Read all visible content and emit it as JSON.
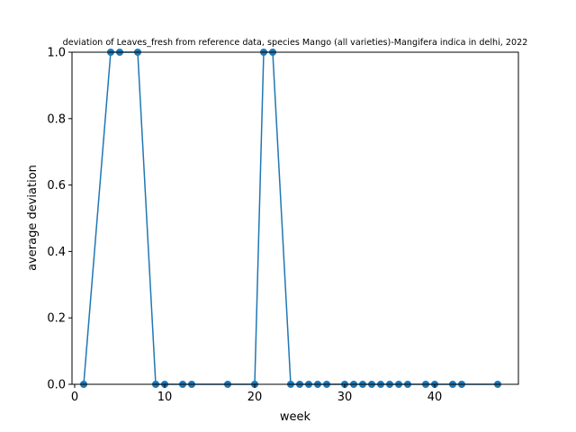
{
  "chart_data": {
    "type": "line",
    "title": "deviation of Leaves_fresh from reference data, species Mango (all varieties)-Mangifera indica in delhi, 2022",
    "xlabel": "week",
    "ylabel": "average deviation",
    "xlim": [
      -0.3,
      49.3
    ],
    "ylim": [
      0.0,
      1.0
    ],
    "xticks": [
      0,
      10,
      20,
      30,
      40
    ],
    "yticks": [
      0.0,
      0.2,
      0.4,
      0.6,
      0.8,
      1.0
    ],
    "xtick_labels": [
      "0",
      "10",
      "20",
      "30",
      "40"
    ],
    "ytick_labels": [
      "0.0",
      "0.2",
      "0.4",
      "0.6",
      "0.8",
      "1.0"
    ],
    "grid": false,
    "series": [
      {
        "color": "#1f77b4",
        "marker": "circle",
        "x": [
          1,
          4,
          5,
          7,
          9,
          10,
          12,
          13,
          17,
          20,
          21,
          22,
          24,
          25,
          26,
          27,
          28,
          30,
          31,
          32,
          33,
          34,
          35,
          36,
          37,
          39,
          40,
          42,
          43,
          47
        ],
        "y": [
          0,
          1,
          1,
          1,
          0,
          0,
          0,
          0,
          0,
          0,
          1,
          1,
          0,
          0,
          0,
          0,
          0,
          0,
          0,
          0,
          0,
          0,
          0,
          0,
          0,
          0,
          0,
          0,
          0,
          0
        ]
      }
    ]
  }
}
